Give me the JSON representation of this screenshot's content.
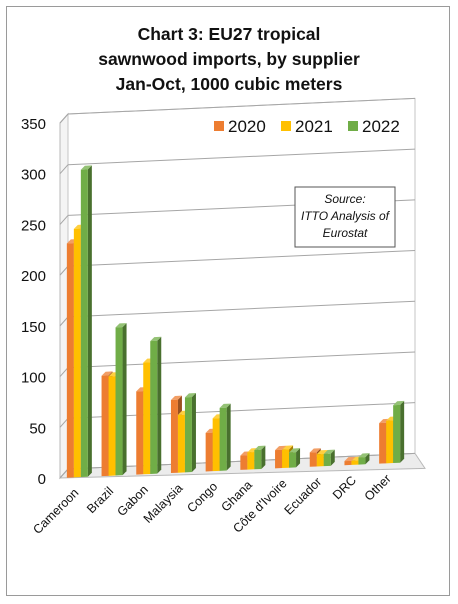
{
  "chart_data": {
    "type": "bar",
    "title": [
      "Chart 3: EU27 tropical",
      "sawnwood imports, by supplier",
      "Jan-Oct, 1000 cubic meters"
    ],
    "categories": [
      "Cameroon",
      "Brazil",
      "Gabon",
      "Malaysia",
      "Congo",
      "Ghana",
      "Côte d'Ivoire",
      "Ecuador",
      "DRC",
      "Other"
    ],
    "series": [
      {
        "name": "2020",
        "color": "#ed7d31",
        "values": [
          231,
          99,
          82,
          72,
          38,
          14,
          18,
          14,
          4,
          40
        ]
      },
      {
        "name": "2021",
        "color": "#ffc000",
        "values": [
          245,
          98,
          110,
          57,
          52,
          17,
          18,
          12,
          4,
          42
        ]
      },
      {
        "name": "2022",
        "color": "#70ad47",
        "values": [
          303,
          146,
          131,
          74,
          62,
          19,
          15,
          12,
          7,
          57
        ]
      }
    ],
    "ylim": [
      0,
      350
    ],
    "yticks": [
      0,
      50,
      100,
      150,
      200,
      250,
      300,
      350
    ],
    "grid": true,
    "legend_position": "top-right",
    "annotation": [
      "Source:",
      "ITTO Analysis of",
      "Eurostat"
    ]
  }
}
